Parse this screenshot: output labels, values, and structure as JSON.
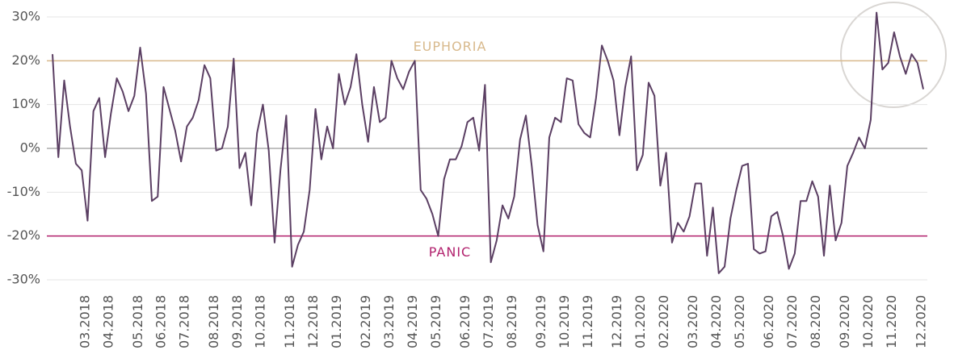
{
  "chart_data": {
    "type": "line",
    "categories": [
      null,
      null,
      null,
      null,
      null,
      "03.2018",
      null,
      null,
      null,
      "04.2018",
      null,
      null,
      null,
      null,
      "05.2018",
      null,
      null,
      null,
      "06.2018",
      null,
      null,
      null,
      "07.2018",
      null,
      null,
      null,
      null,
      "08.2018",
      null,
      null,
      null,
      "09.2018",
      null,
      null,
      null,
      "10.2018",
      null,
      null,
      null,
      null,
      "11.2018",
      null,
      null,
      null,
      "12.2018",
      null,
      null,
      null,
      "01.2019",
      null,
      null,
      null,
      null,
      "02.2019",
      null,
      null,
      null,
      "03.2019",
      null,
      null,
      null,
      "04.2019",
      null,
      null,
      null,
      "05.2019",
      null,
      null,
      null,
      null,
      "06.2019",
      null,
      null,
      null,
      "07.2019",
      null,
      null,
      null,
      "08.2019",
      null,
      null,
      null,
      null,
      "09.2019",
      null,
      null,
      null,
      "10.2019",
      null,
      null,
      null,
      "11.2019",
      null,
      null,
      null,
      null,
      "12.2019",
      null,
      null,
      null,
      "01.2020",
      null,
      null,
      null,
      "02.2020",
      null,
      null,
      null,
      null,
      "03.2020",
      null,
      null,
      null,
      "04.2020",
      null,
      null,
      null,
      "05.2020",
      null,
      null,
      null,
      null,
      "06.2020",
      null,
      null,
      null,
      "07.2020",
      null,
      null,
      null,
      "08.2020",
      null,
      null,
      null,
      null,
      "09.2020",
      null,
      null,
      null,
      "10.2020",
      null,
      null,
      null,
      "11.2020",
      null,
      null,
      null,
      null,
      "12.2020",
      null
    ],
    "series": [
      {
        "color": "#5b3f63",
        "values": [
          21.5,
          -2,
          15.5,
          5,
          -3.5,
          -5,
          -16.5,
          8.5,
          11.5,
          -2,
          8,
          16,
          13,
          8.5,
          12,
          23,
          12.5,
          -12,
          -11,
          14,
          9,
          4,
          -3,
          5,
          7,
          11,
          19,
          16,
          -0.5,
          0,
          5,
          20.5,
          -4.5,
          -1,
          -13,
          3.5,
          10,
          -0.5,
          -21.5,
          -5,
          7.5,
          -27,
          -22,
          -19,
          -9.5,
          9,
          -2.5,
          5,
          0,
          17,
          10,
          14,
          21.5,
          10,
          1.5,
          14,
          6,
          7,
          20,
          16,
          13.5,
          17.5,
          20,
          -9.5,
          -11.5,
          -15,
          -20,
          -7,
          -2.5,
          -2.5,
          0.5,
          6,
          7,
          -0.5,
          14.5,
          -26,
          -21,
          -13,
          -16,
          -11,
          2,
          7.5,
          -4,
          -17.5,
          -23.5,
          2.5,
          7,
          6,
          16,
          15.5,
          5.5,
          3.5,
          2.5,
          11.5,
          23.5,
          20,
          15.5,
          3,
          14,
          21,
          -5,
          -1.5,
          15,
          12,
          -8.5,
          -1,
          -21.5,
          -17,
          -19,
          -15.5,
          -8,
          -8,
          -24.5,
          -13.5,
          -28.5,
          -27,
          -16,
          -9.5,
          -4,
          -3.5,
          -23,
          -24,
          -23.5,
          -15.5,
          -14.5,
          -20,
          -27.5,
          -24,
          -12,
          -12,
          -7.5,
          -11,
          -24.5,
          -8.5,
          -21,
          -17,
          -4,
          -1,
          2.5,
          0,
          6.5,
          31,
          18,
          19.5,
          26.5,
          21,
          17,
          21.5,
          19.5,
          13.5
        ]
      }
    ],
    "ylim": [
      -30,
      30
    ],
    "yticks": [
      {
        "value": -30,
        "label": "-30%"
      },
      {
        "value": -20,
        "label": "-20%"
      },
      {
        "value": -10,
        "label": "-10%"
      },
      {
        "value": 0,
        "label": "0%"
      },
      {
        "value": 10,
        "label": "10%"
      },
      {
        "value": 20,
        "label": "20%"
      },
      {
        "value": 30,
        "label": "30%"
      }
    ],
    "grid": true,
    "reference_lines": [
      {
        "value": 20,
        "label": "EUPHORIA",
        "color": "#d8b98c"
      },
      {
        "value": -20,
        "label": "PANIC",
        "color": "#b2226e"
      }
    ]
  }
}
